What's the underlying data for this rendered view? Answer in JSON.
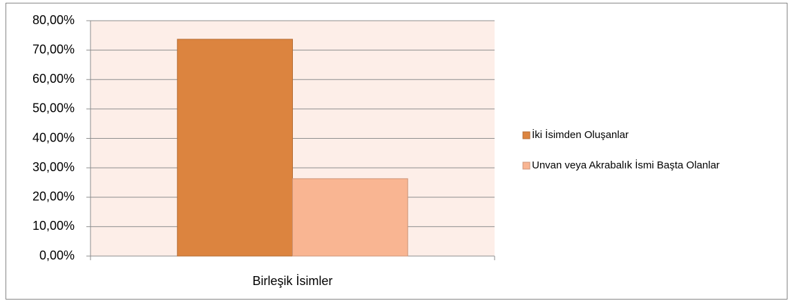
{
  "chart_data": {
    "type": "bar",
    "categories": [
      "Birleşik İsimler"
    ],
    "series": [
      {
        "name": "İki İsimden Oluşanlar",
        "color": "#dc843f",
        "values": [
          73.7
        ]
      },
      {
        "name": "Unvan veya Akrabalık İsmi Başta Olanlar",
        "color": "#f9b592",
        "values": [
          26.3
        ]
      }
    ],
    "ylim": [
      0,
      80
    ],
    "yticks": [
      {
        "value": 0,
        "label": "0,00%"
      },
      {
        "value": 10,
        "label": "10,00%"
      },
      {
        "value": 20,
        "label": "20,00%"
      },
      {
        "value": 30,
        "label": "30,00%"
      },
      {
        "value": 40,
        "label": "40,00%"
      },
      {
        "value": 50,
        "label": "50,00%"
      },
      {
        "value": 60,
        "label": "60,00%"
      },
      {
        "value": 70,
        "label": "70,00%"
      },
      {
        "value": 80,
        "label": "80,00%"
      }
    ],
    "grid": true,
    "legend": "right"
  }
}
